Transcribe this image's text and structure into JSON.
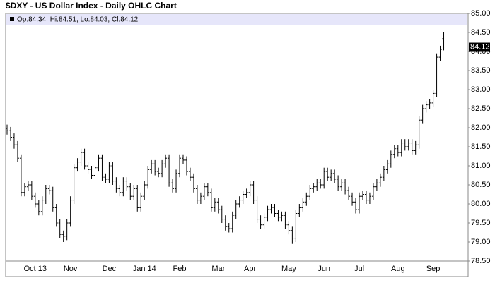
{
  "chart_data": {
    "type": "ohlc",
    "title": "$DXY - US Dollar Index - Daily OHLC Chart",
    "legend": "Op:84.34, Hi:84.51, Lo:84.03, Cl:84.12",
    "color": "#000000",
    "categories": [
      null,
      null,
      null,
      null,
      null,
      null,
      null,
      null,
      "Oct 13",
      null,
      null,
      null,
      null,
      null,
      null,
      null,
      null,
      null,
      "Nov",
      null,
      null,
      null,
      null,
      null,
      null,
      null,
      null,
      null,
      null,
      "Dec",
      null,
      null,
      null,
      null,
      null,
      null,
      null,
      null,
      null,
      "Jan 14",
      null,
      null,
      null,
      null,
      null,
      null,
      null,
      null,
      null,
      "Feb",
      null,
      null,
      null,
      null,
      null,
      null,
      null,
      null,
      null,
      null,
      "Mar",
      null,
      null,
      null,
      null,
      null,
      null,
      null,
      null,
      "Apr",
      null,
      null,
      null,
      null,
      null,
      null,
      null,
      null,
      null,
      null,
      "May",
      null,
      null,
      null,
      null,
      null,
      null,
      null,
      null,
      null,
      "Jun",
      null,
      null,
      null,
      null,
      null,
      null,
      null,
      null,
      null,
      "Jul",
      null,
      null,
      null,
      null,
      null,
      null,
      null,
      null,
      null,
      null,
      "Aug",
      null,
      null,
      null,
      null,
      null,
      null,
      null,
      null,
      null,
      "Sep",
      null,
      null,
      null
    ],
    "open": [
      81.98,
      81.92,
      81.75,
      81.55,
      81.2,
      80.3,
      80.45,
      80.5,
      80.2,
      80.0,
      79.8,
      80.1,
      80.4,
      80.35,
      79.9,
      79.5,
      79.2,
      79.15,
      79.5,
      80.1,
      80.95,
      81.1,
      81.35,
      81.0,
      80.9,
      80.75,
      80.95,
      81.2,
      80.7,
      80.65,
      81.0,
      80.6,
      80.4,
      80.3,
      80.6,
      80.45,
      80.2,
      80.4,
      79.9,
      80.2,
      80.5,
      80.9,
      81.05,
      80.85,
      80.8,
      81.05,
      81.2,
      80.55,
      80.4,
      80.8,
      81.2,
      81.15,
      80.85,
      80.7,
      80.4,
      80.1,
      80.2,
      80.45,
      80.3,
      79.9,
      80.05,
      79.85,
      79.6,
      79.4,
      79.35,
      79.7,
      80.0,
      80.1,
      80.25,
      80.3,
      80.5,
      80.1,
      79.6,
      79.45,
      79.65,
      79.85,
      79.9,
      79.75,
      79.65,
      79.7,
      79.45,
      79.3,
      79.1,
      79.75,
      79.9,
      80.05,
      80.2,
      80.4,
      80.45,
      80.55,
      80.5,
      80.85,
      80.7,
      80.8,
      80.65,
      80.45,
      80.55,
      80.35,
      80.2,
      80.05,
      79.85,
      80.2,
      80.25,
      80.1,
      80.2,
      80.45,
      80.55,
      80.7,
      80.9,
      81.05,
      81.3,
      81.45,
      81.35,
      81.6,
      81.5,
      81.6,
      81.4,
      81.55,
      82.2,
      82.5,
      82.6,
      82.65,
      82.9,
      83.85,
      84.34
    ],
    "high": [
      82.08,
      82.02,
      81.85,
      81.65,
      81.3,
      80.55,
      80.6,
      80.6,
      80.3,
      80.1,
      80.2,
      80.5,
      80.5,
      80.45,
      80.0,
      79.6,
      79.3,
      79.6,
      80.2,
      81.05,
      81.2,
      81.45,
      81.45,
      81.1,
      81.0,
      81.05,
      81.3,
      81.3,
      80.8,
      81.1,
      81.1,
      80.7,
      80.5,
      80.7,
      80.7,
      80.55,
      80.5,
      80.5,
      80.3,
      80.6,
      81.0,
      81.15,
      81.15,
      80.95,
      81.15,
      81.3,
      81.3,
      80.65,
      80.9,
      81.3,
      81.3,
      81.25,
      80.95,
      80.8,
      80.5,
      80.3,
      80.55,
      80.55,
      80.4,
      80.15,
      80.15,
      79.95,
      79.7,
      79.5,
      79.8,
      80.1,
      80.2,
      80.35,
      80.4,
      80.6,
      80.6,
      80.2,
      79.7,
      79.75,
      79.95,
      80.0,
      80.0,
      79.85,
      79.8,
      79.8,
      79.55,
      79.4,
      79.85,
      80.0,
      80.15,
      80.3,
      80.5,
      80.55,
      80.65,
      80.65,
      80.95,
      80.95,
      80.9,
      80.9,
      80.75,
      80.65,
      80.65,
      80.45,
      80.3,
      80.15,
      80.3,
      80.35,
      80.35,
      80.3,
      80.55,
      80.65,
      80.8,
      81.0,
      81.15,
      81.4,
      81.55,
      81.55,
      81.7,
      81.7,
      81.7,
      81.7,
      81.65,
      82.3,
      82.6,
      82.7,
      82.75,
      83.0,
      83.95,
      84.15,
      84.51
    ],
    "low": [
      81.82,
      81.65,
      81.45,
      81.1,
      80.2,
      80.2,
      80.35,
      80.1,
      79.9,
      79.7,
      79.7,
      80.0,
      80.25,
      79.8,
      79.4,
      79.1,
      79.0,
      79.05,
      79.4,
      80.0,
      80.85,
      81.0,
      80.9,
      80.8,
      80.65,
      80.65,
      80.85,
      80.6,
      80.55,
      80.55,
      80.5,
      80.3,
      80.2,
      80.2,
      80.35,
      80.1,
      80.1,
      79.8,
      79.8,
      80.1,
      80.4,
      80.8,
      80.75,
      80.7,
      80.7,
      80.95,
      80.45,
      80.3,
      80.3,
      80.7,
      81.05,
      80.75,
      80.6,
      80.3,
      80.0,
      80.0,
      80.1,
      80.2,
      79.8,
      79.8,
      79.75,
      79.5,
      79.3,
      79.25,
      79.25,
      79.6,
      79.9,
      80.0,
      80.15,
      80.2,
      80.0,
      79.5,
      79.35,
      79.35,
      79.55,
      79.75,
      79.65,
      79.55,
      79.55,
      79.35,
      79.2,
      78.95,
      79.0,
      79.65,
      79.8,
      79.95,
      80.1,
      80.3,
      80.35,
      80.4,
      80.4,
      80.6,
      80.6,
      80.55,
      80.35,
      80.35,
      80.25,
      80.1,
      79.95,
      79.75,
      79.75,
      80.1,
      80.0,
      80.0,
      80.1,
      80.35,
      80.45,
      80.6,
      80.8,
      80.95,
      81.2,
      81.25,
      81.25,
      81.4,
      81.4,
      81.3,
      81.3,
      81.45,
      82.1,
      82.4,
      82.5,
      82.55,
      82.8,
      83.75,
      84.03
    ],
    "close": [
      81.92,
      81.75,
      81.55,
      81.2,
      80.3,
      80.45,
      80.5,
      80.2,
      80.0,
      79.8,
      80.1,
      80.4,
      80.35,
      79.9,
      79.5,
      79.2,
      79.15,
      79.5,
      80.1,
      80.95,
      81.1,
      81.35,
      81.0,
      80.9,
      80.75,
      80.95,
      81.2,
      80.7,
      80.65,
      81.0,
      80.6,
      80.4,
      80.3,
      80.6,
      80.45,
      80.2,
      80.4,
      79.9,
      80.2,
      80.5,
      80.9,
      81.05,
      80.85,
      80.8,
      81.05,
      81.2,
      80.55,
      80.4,
      80.8,
      81.2,
      81.15,
      80.85,
      80.7,
      80.4,
      80.1,
      80.2,
      80.45,
      80.3,
      79.9,
      80.05,
      79.85,
      79.6,
      79.4,
      79.35,
      79.7,
      80.0,
      80.1,
      80.25,
      80.3,
      80.5,
      80.1,
      79.6,
      79.45,
      79.65,
      79.85,
      79.9,
      79.75,
      79.65,
      79.7,
      79.45,
      79.3,
      79.1,
      79.75,
      79.9,
      80.05,
      80.2,
      80.4,
      80.45,
      80.55,
      80.5,
      80.85,
      80.7,
      80.8,
      80.65,
      80.45,
      80.55,
      80.35,
      80.2,
      80.05,
      79.85,
      80.2,
      80.25,
      80.1,
      80.2,
      80.45,
      80.55,
      80.7,
      80.9,
      81.05,
      81.3,
      81.45,
      81.35,
      81.6,
      81.5,
      81.6,
      81.4,
      81.55,
      82.2,
      82.5,
      82.6,
      82.65,
      82.9,
      83.85,
      84.05,
      84.12
    ],
    "ylim": [
      78.5,
      85.0
    ],
    "yticks": [
      {
        "value": 78.5,
        "label": "78.50"
      },
      {
        "value": 79,
        "label": "79.00"
      },
      {
        "value": 79.5,
        "label": "79.50"
      },
      {
        "value": 80,
        "label": "80.00"
      },
      {
        "value": 80.5,
        "label": "80.50"
      },
      {
        "value": 81,
        "label": "81.00"
      },
      {
        "value": 81.5,
        "label": "81.50"
      },
      {
        "value": 82,
        "label": "82.00"
      },
      {
        "value": 82.5,
        "label": "82.50"
      },
      {
        "value": 83,
        "label": "83.00"
      },
      {
        "value": 83.5,
        "label": "83.50"
      },
      {
        "value": 84,
        "label": "84.00"
      },
      {
        "value": 84.5,
        "label": "84.50"
      },
      {
        "value": 85,
        "label": "85.00"
      }
    ],
    "grid": false
  }
}
